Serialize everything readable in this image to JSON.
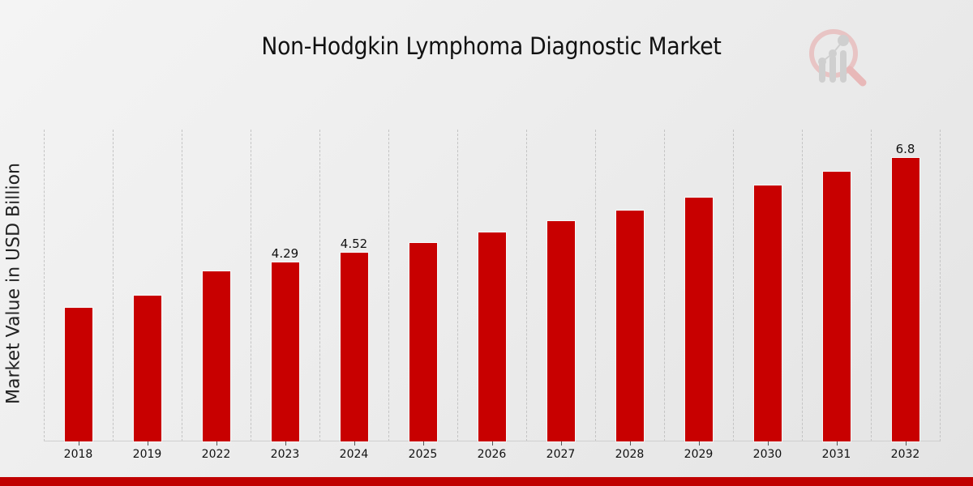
{
  "chart_data": {
    "type": "bar",
    "title": "Non-Hodgkin Lymphoma Diagnostic Market",
    "xlabel": "",
    "ylabel": "Market Value in USD Billion",
    "categories": [
      "2018",
      "2019",
      "2022",
      "2023",
      "2024",
      "2025",
      "2026",
      "2027",
      "2028",
      "2029",
      "2030",
      "2031",
      "2032"
    ],
    "values": [
      3.2,
      3.5,
      4.08,
      4.29,
      4.52,
      4.76,
      5.0,
      5.28,
      5.53,
      5.84,
      6.14,
      6.47,
      6.8
    ],
    "data_labels": {
      "2023": "4.29",
      "2024": "4.52",
      "2032": "6.8"
    },
    "ylim": [
      0,
      7.47
    ],
    "grid": "vertical dashed",
    "legend": "none",
    "bar_color": "#c80000"
  },
  "colors": {
    "bar": "#c80000",
    "footer": "#c00000"
  }
}
